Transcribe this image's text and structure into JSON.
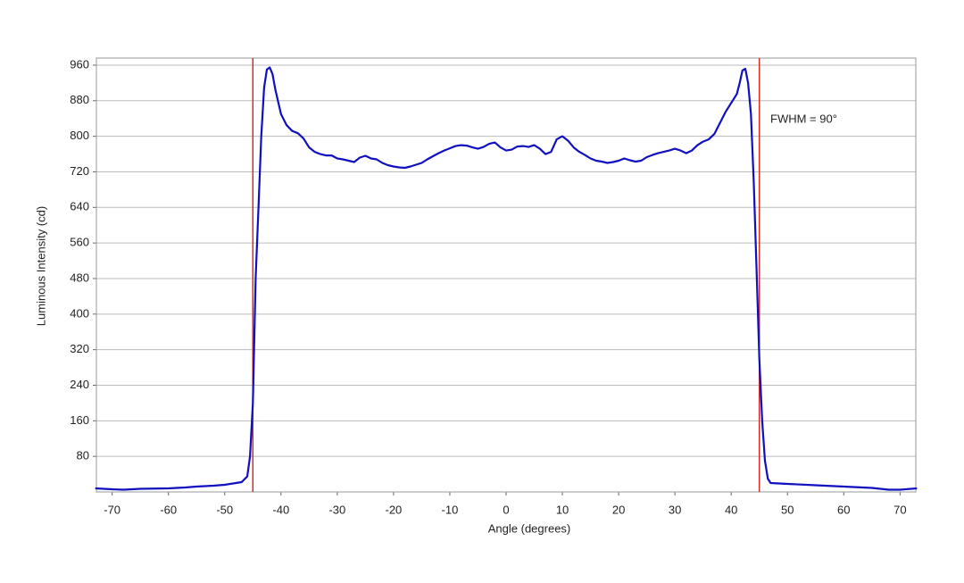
{
  "chart_data": {
    "type": "line",
    "xlabel": "Angle (degrees)",
    "ylabel": "Luminous Intensity (cd)",
    "annotation": "FWHM = 90°",
    "vlines": [
      -45,
      45
    ],
    "vline_color": "#d42a2a",
    "x": [
      -73,
      -70,
      -68,
      -65,
      -60,
      -57,
      -55,
      -52,
      -50,
      -48,
      -47,
      -46,
      -45.5,
      -45,
      -44.5,
      -44,
      -43.5,
      -43,
      -42.5,
      -42,
      -41.5,
      -41,
      -40,
      -39,
      -38,
      -37,
      -36,
      -35,
      -34,
      -33,
      -32,
      -31,
      -30,
      -29,
      -28,
      -27,
      -26,
      -25,
      -24,
      -23,
      -22,
      -21,
      -20,
      -19,
      -18,
      -17,
      -16,
      -15,
      -14,
      -13,
      -12,
      -11,
      -10,
      -9,
      -8,
      -7,
      -6,
      -5,
      -4,
      -3,
      -2,
      -1,
      0,
      1,
      2,
      3,
      4,
      5,
      6,
      7,
      8,
      9,
      10,
      11,
      12,
      13,
      14,
      15,
      16,
      17,
      18,
      19,
      20,
      21,
      22,
      23,
      24,
      25,
      26,
      27,
      28,
      29,
      30,
      31,
      32,
      33,
      34,
      35,
      36,
      37,
      38,
      39,
      40,
      41,
      41.5,
      42,
      42.5,
      43,
      43.5,
      44,
      44.5,
      45,
      45.5,
      46,
      46.5,
      47,
      50,
      55,
      60,
      65,
      68,
      70,
      73
    ],
    "series": [
      {
        "name": "Intensity",
        "color": "#1010c0",
        "values": [
          8,
          6,
          5,
          7,
          8,
          10,
          12,
          14,
          16,
          20,
          22,
          35,
          80,
          200,
          480,
          640,
          800,
          910,
          950,
          955,
          940,
          905,
          850,
          825,
          812,
          807,
          795,
          775,
          765,
          760,
          757,
          757,
          750,
          748,
          745,
          742,
          752,
          756,
          750,
          748,
          740,
          735,
          732,
          730,
          729,
          732,
          736,
          740,
          748,
          755,
          762,
          768,
          773,
          778,
          780,
          779,
          775,
          772,
          776,
          783,
          786,
          775,
          768,
          770,
          777,
          778,
          776,
          780,
          772,
          760,
          765,
          793,
          800,
          790,
          775,
          765,
          758,
          750,
          745,
          743,
          740,
          742,
          745,
          750,
          746,
          743,
          745,
          753,
          758,
          762,
          765,
          768,
          772,
          768,
          762,
          768,
          780,
          788,
          793,
          805,
          830,
          855,
          875,
          895,
          920,
          948,
          952,
          920,
          850,
          700,
          500,
          300,
          160,
          70,
          30,
          20,
          18,
          15,
          12,
          9,
          5,
          5,
          8
        ]
      }
    ],
    "xlim": [
      -72.8,
      72.8
    ],
    "ylim": [
      0,
      976
    ],
    "xticks": [
      -70,
      -60,
      -50,
      -40,
      -30,
      -20,
      -10,
      0,
      10,
      20,
      30,
      40,
      50,
      60,
      70
    ],
    "yticks": [
      80,
      160,
      240,
      320,
      400,
      480,
      560,
      640,
      720,
      800,
      880,
      960
    ],
    "grid": true
  }
}
